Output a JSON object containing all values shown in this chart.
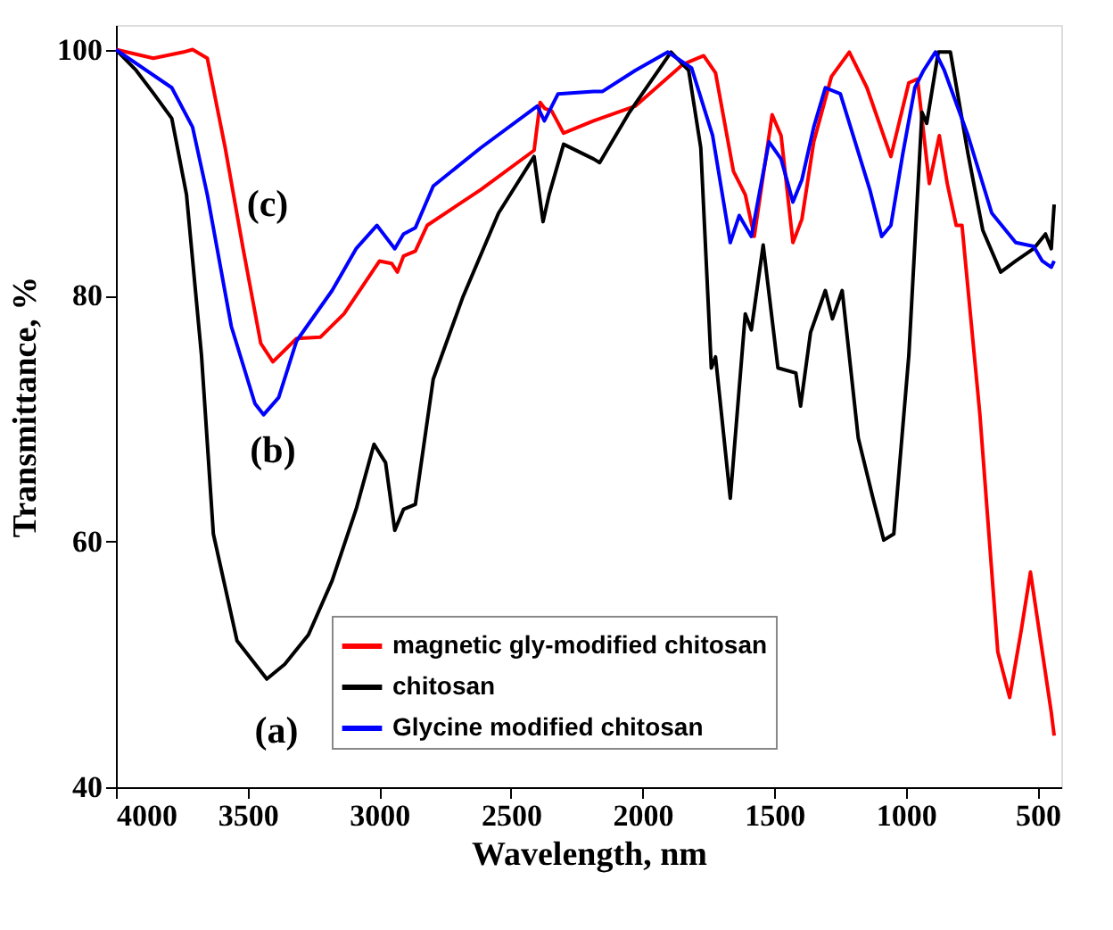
{
  "chart_data": {
    "type": "line",
    "xlabel": "Wavelength, nm",
    "ylabel": "Transmittance, %",
    "xlim": [
      4000,
      410
    ],
    "ylim": [
      40,
      102
    ],
    "xticks": [
      4000,
      3500,
      3000,
      2500,
      2000,
      1500,
      1000,
      500
    ],
    "yticks": [
      40,
      60,
      80,
      100
    ],
    "grid": false,
    "legend": "bottom",
    "line_style": "solid",
    "marker": "none",
    "annotations": [
      "(c)",
      "(b)",
      "(a)"
    ],
    "series": [
      {
        "name": "magnetic gly-modified chitosan",
        "color": "#ff0000",
        "x": [
          4000,
          3858,
          3743,
          3709,
          3653,
          3585,
          3517,
          3450,
          3404,
          3314,
          3224,
          3134,
          2999,
          2953,
          2931,
          2908,
          2863,
          2818,
          2615,
          2412,
          2389,
          2371,
          2345,
          2300,
          2186,
          2028,
          1847,
          1768,
          1723,
          1655,
          1610,
          1576,
          1508,
          1474,
          1429,
          1395,
          1350,
          1283,
          1215,
          1148,
          1057,
          989,
          956,
          911,
          873,
          843,
          809,
          787,
          719,
          651,
          606,
          561,
          527,
          482,
          448,
          437
        ],
        "values": [
          100,
          99.3,
          99.8,
          100,
          99.3,
          92.0,
          83.8,
          76.1,
          74.6,
          76.5,
          76.6,
          78.5,
          82.8,
          82.6,
          81.9,
          83.2,
          83.6,
          85.7,
          88.6,
          91.8,
          95.7,
          95.2,
          95.0,
          93.2,
          94.2,
          95.4,
          98.8,
          99.5,
          98.1,
          90.1,
          88.2,
          84.8,
          94.7,
          93.0,
          84.3,
          86.2,
          92.5,
          97.8,
          99.8,
          96.9,
          91.3,
          97.3,
          97.6,
          89.1,
          93.0,
          89.1,
          85.7,
          85.7,
          70.3,
          51.0,
          47.3,
          52.9,
          57.5,
          51.0,
          46.1,
          44.2
        ]
      },
      {
        "name": "chitosan",
        "color": "#000000",
        "x": [
          4000,
          3923,
          3856,
          3788,
          3732,
          3675,
          3630,
          3540,
          3427,
          3359,
          3269,
          3179,
          3088,
          3020,
          2976,
          2941,
          2908,
          2863,
          2795,
          2682,
          2547,
          2412,
          2378,
          2355,
          2300,
          2186,
          2163,
          2050,
          1892,
          1825,
          1779,
          1739,
          1723,
          1667,
          1610,
          1587,
          1542,
          1486,
          1418,
          1400,
          1362,
          1306,
          1279,
          1242,
          1181,
          1125,
          1084,
          1046,
          989,
          939,
          921,
          877,
          831,
          764,
          708,
          640,
          583,
          515,
          470,
          448,
          437
        ],
        "values": [
          100,
          98.3,
          96.4,
          94.4,
          88.2,
          75.1,
          60.6,
          51.9,
          48.8,
          50.0,
          52.4,
          56.8,
          62.6,
          67.9,
          66.4,
          60.9,
          62.6,
          63.0,
          73.2,
          79.9,
          86.7,
          91.3,
          86.0,
          88.2,
          92.3,
          91.1,
          90.8,
          94.9,
          99.8,
          98.3,
          92.0,
          74.1,
          75.0,
          63.5,
          78.5,
          77.2,
          84.1,
          74.1,
          73.7,
          71.0,
          77.0,
          80.4,
          78.1,
          80.4,
          68.4,
          63.5,
          60.1,
          60.6,
          75.1,
          94.9,
          94.0,
          99.8,
          99.8,
          91.5,
          85.3,
          81.9,
          82.8,
          83.8,
          85.0,
          83.8,
          87.4
        ]
      },
      {
        "name": "Glycine modified chitosan",
        "color": "#0000ff",
        "x": [
          4000,
          3788,
          3709,
          3653,
          3562,
          3472,
          3439,
          3382,
          3314,
          3179,
          3088,
          3009,
          2941,
          2908,
          2863,
          2795,
          2615,
          2400,
          2373,
          2321,
          2186,
          2152,
          2028,
          1904,
          1814,
          1734,
          1667,
          1633,
          1587,
          1520,
          1474,
          1429,
          1395,
          1350,
          1306,
          1249,
          1193,
          1137,
          1092,
          1057,
          1012,
          966,
          933,
          888,
          854,
          764,
          674,
          583,
          515,
          482,
          448,
          437
        ],
        "values": [
          100,
          96.9,
          93.7,
          88.2,
          77.5,
          71.2,
          70.3,
          71.7,
          76.3,
          80.4,
          83.8,
          85.7,
          83.8,
          85.0,
          85.5,
          88.9,
          92.0,
          95.4,
          94.2,
          96.4,
          96.6,
          96.6,
          98.3,
          99.8,
          98.5,
          93.0,
          84.3,
          86.5,
          84.8,
          92.5,
          91.1,
          87.6,
          89.4,
          93.7,
          96.9,
          96.4,
          92.5,
          88.6,
          84.8,
          85.7,
          91.5,
          96.9,
          98.3,
          99.8,
          98.3,
          93.0,
          86.7,
          84.3,
          84.0,
          82.8,
          82.3,
          82.8
        ]
      }
    ]
  }
}
